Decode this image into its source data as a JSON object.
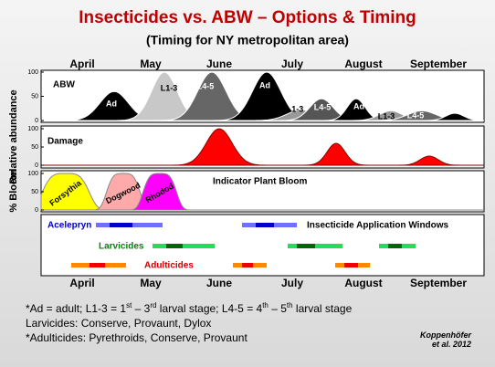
{
  "title": "Insecticides vs. ABW – Options & Timing",
  "subtitle": "(Timing for NY metropolitan area)",
  "months": [
    "April",
    "May",
    "June",
    "July",
    "August",
    "September"
  ],
  "y_axis_labels": [
    "% Bloom",
    "Relative abundance"
  ],
  "abundance_panel": {
    "label": "ABW",
    "yticks": [
      0,
      50,
      100
    ],
    "curves": [
      {
        "label": "Ad",
        "peak": 60
      },
      {
        "label": "L1-3",
        "peak": 100
      },
      {
        "label": "L4-5",
        "peak": 100
      },
      {
        "label": "Ad",
        "peak": 100
      },
      {
        "label": "L1-3",
        "peak": 22
      },
      {
        "label": "L4-5",
        "peak": 45
      },
      {
        "label": "Ad",
        "peak": 45
      },
      {
        "label": "L1-3",
        "peak": 20
      },
      {
        "label": "L4-5",
        "peak": 20
      },
      {
        "label": null,
        "peak": 15
      }
    ]
  },
  "damage_panel": {
    "label": "Damage",
    "yticks": [
      0,
      50,
      100
    ],
    "peaks": [
      100,
      60,
      25
    ]
  },
  "bloom_panel": {
    "label": "Indicator Plant Bloom",
    "yticks": [
      0,
      50,
      100
    ],
    "plants": [
      {
        "label": "Forsythia",
        "peak": 100
      },
      {
        "label": "Dogwood",
        "peak": 100
      },
      {
        "label": "Rhodod",
        "peak": 100
      }
    ]
  },
  "windows_panel": {
    "label": "Insecticide Application Windows",
    "products": [
      "Acelepryn",
      "Larvicides",
      "Adulticides"
    ]
  },
  "footnotes": {
    "line1": [
      "*Ad = adult; L1-3 = 1",
      "st",
      " – 3",
      "rd",
      " larval stage; L4-5 = 4",
      "th",
      " – 5",
      "th",
      " larval stage"
    ],
    "line2": "Larvicides: Conserve, Provaunt, Dylox",
    "line3": "*Adulticides: Pyrethroids, Conserve, Provaunt"
  },
  "credit": [
    "Koppenhöfer",
    "et al. 2012"
  ]
}
